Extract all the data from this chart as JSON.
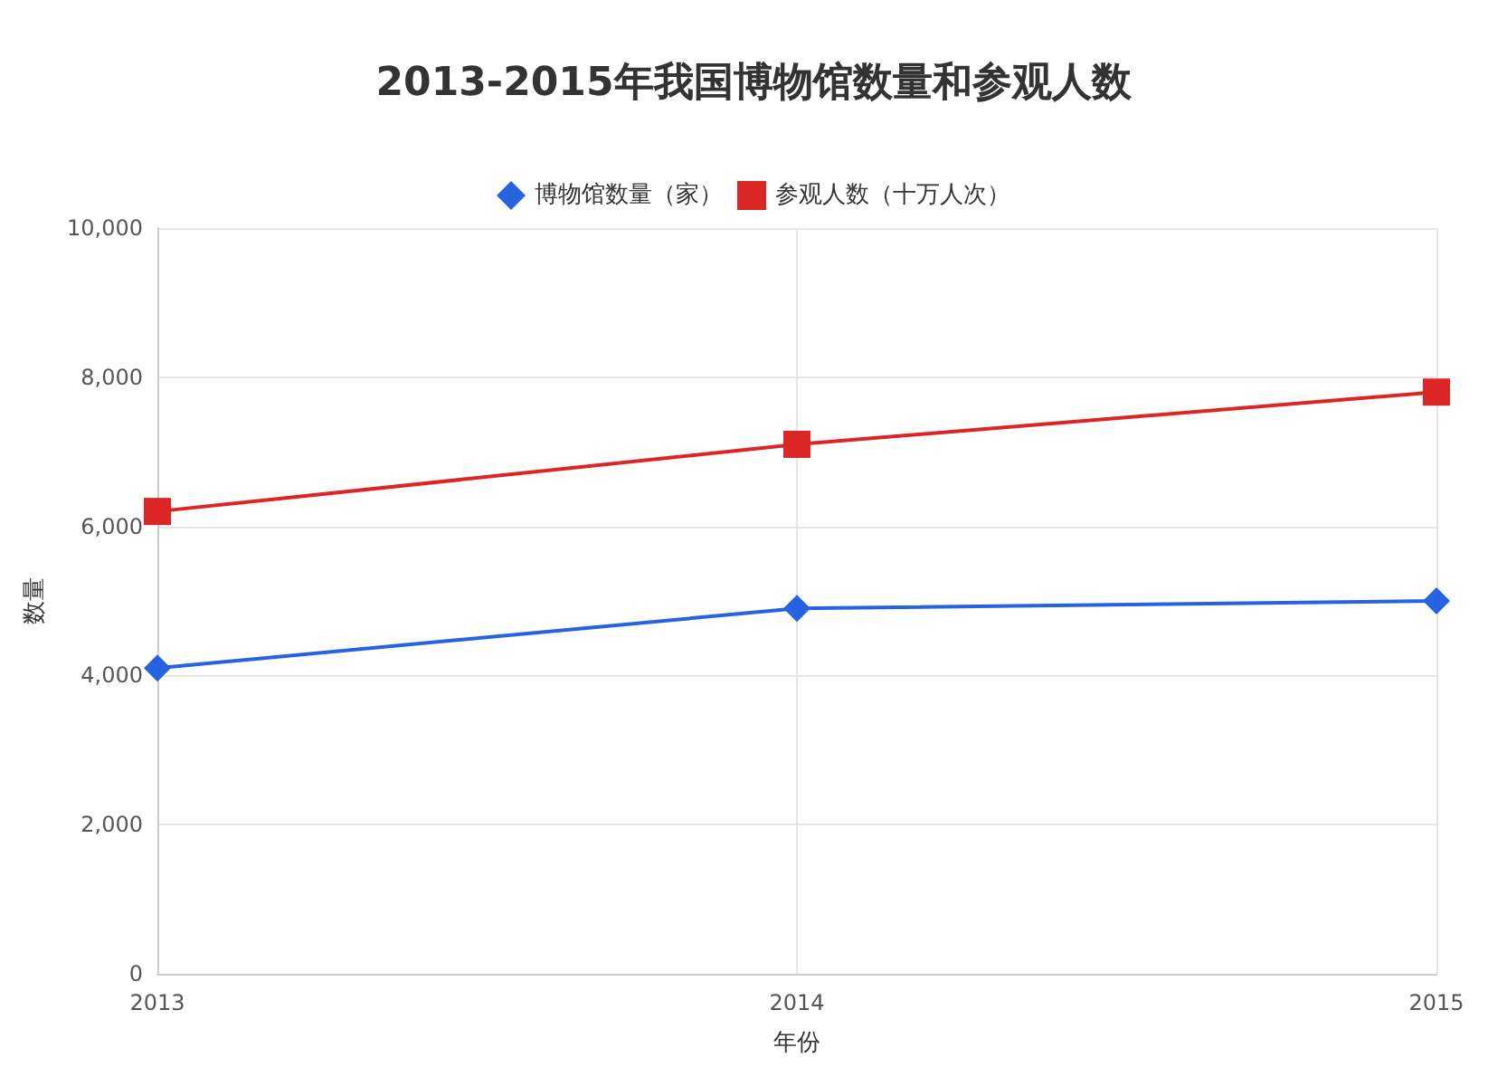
{
  "chart_data": {
    "type": "line",
    "title": "2013-2015年我国博物馆数量和参观人数",
    "xlabel": "年份",
    "ylabel": "数量",
    "x": [
      2013,
      2014,
      2015
    ],
    "xlim": [
      2013,
      2015
    ],
    "xticks": [
      2013,
      2014,
      2015
    ],
    "ylim": [
      0,
      10000
    ],
    "yticks": [
      0,
      {
        "value": 2000,
        "label": "2,000"
      },
      {
        "value": 4000,
        "label": "4,000"
      },
      {
        "value": 6000,
        "label": "6,000"
      },
      {
        "value": 8000,
        "label": "8,000"
      },
      {
        "value": 10000,
        "label": "10,000"
      }
    ],
    "series": [
      {
        "name": "博物馆数量（家）",
        "color": "#2563e0",
        "marker": "diamond",
        "values": [
          4100,
          4900,
          5000
        ]
      },
      {
        "name": "参观人数（十万人次）",
        "color": "#dc2626",
        "marker": "square",
        "values": [
          6200,
          7100,
          7800
        ]
      }
    ],
    "grid": true,
    "legend": "top",
    "line_style": "solid"
  }
}
